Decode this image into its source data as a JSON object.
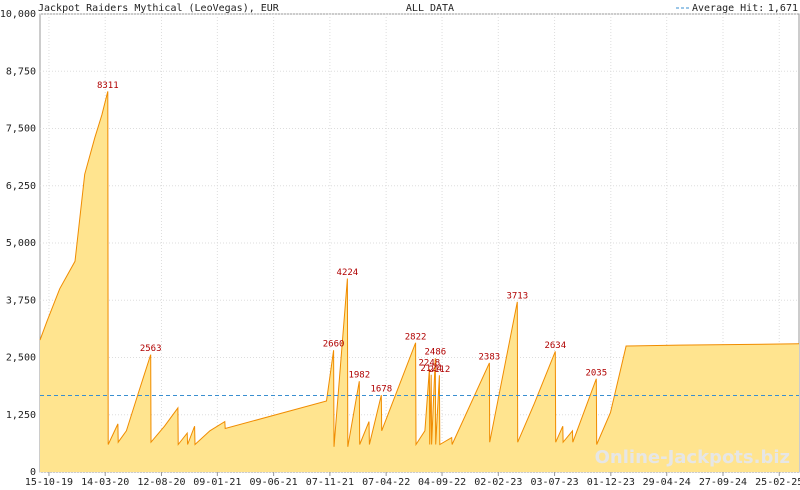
{
  "chart_data": {
    "type": "area",
    "title": "Jackpot Raiders Mythical (LeoVegas), EUR",
    "subtitle": "ALL DATA",
    "watermark": "Online-Jackpots.biz",
    "color": "#ffe48f",
    "line_color": "#f08c00",
    "xlim": [
      "2019-09-21",
      "2025-04-19"
    ],
    "ylim": [
      0,
      10000
    ],
    "xticks": [
      {
        "value": "2019-10-15",
        "label": "15-10-19"
      },
      {
        "value": "2020-03-14",
        "label": "14-03-20"
      },
      {
        "value": "2020-08-12",
        "label": "12-08-20"
      },
      {
        "value": "2021-01-09",
        "label": "09-01-21"
      },
      {
        "value": "2021-06-09",
        "label": "09-06-21"
      },
      {
        "value": "2021-11-07",
        "label": "07-11-21"
      },
      {
        "value": "2022-04-07",
        "label": "07-04-22"
      },
      {
        "value": "2022-09-04",
        "label": "04-09-22"
      },
      {
        "value": "2023-02-02",
        "label": "02-02-23"
      },
      {
        "value": "2023-07-03",
        "label": "03-07-23"
      },
      {
        "value": "2023-12-01",
        "label": "01-12-23"
      },
      {
        "value": "2024-04-29",
        "label": "29-04-24"
      },
      {
        "value": "2024-09-27",
        "label": "27-09-24"
      },
      {
        "value": "2025-02-25",
        "label": "25-02-25"
      }
    ],
    "yticks": [
      0,
      {
        "value": 1250,
        "label": "1,250"
      },
      {
        "value": 2500,
        "label": "2,500"
      },
      {
        "value": 3750,
        "label": "3,750"
      },
      {
        "value": 5000,
        "label": "5,000"
      },
      {
        "value": 6250,
        "label": "6,250"
      },
      {
        "value": 7500,
        "label": "7,500"
      },
      {
        "value": 8750,
        "label": "8,750"
      },
      {
        "value": 10000,
        "label": "10,000"
      }
    ],
    "grid": true,
    "x": [
      "2019-09-21",
      "2019-10-10",
      "2019-11-13",
      "2019-12-24",
      "2020-01-19",
      "2020-02-15",
      "2020-03-05",
      "2020-03-21",
      "2020-03-22",
      "2020-04-17",
      "2020-04-18",
      "2020-05-10",
      "2020-06-10",
      "2020-07-14",
      "2020-07-15",
      "2020-08-20",
      "2020-09-25",
      "2020-09-26",
      "2020-10-20",
      "2020-10-21",
      "2020-11-09",
      "2020-11-10",
      "2020-12-20",
      "2021-01-29",
      "2021-01-30",
      "2021-10-29",
      "2021-11-17",
      "2021-11-18",
      "2021-12-24",
      "2021-12-25",
      "2022-01-25",
      "2022-01-26",
      "2022-02-20",
      "2022-02-21",
      "2022-03-25",
      "2022-03-26",
      "2022-06-25",
      "2022-06-26",
      "2022-07-20",
      "2022-08-01",
      "2022-08-02",
      "2022-08-06",
      "2022-08-07",
      "2022-08-17",
      "2022-08-18",
      "2022-08-28",
      "2022-08-29",
      "2022-09-30",
      "2022-10-01",
      "2023-01-09",
      "2023-01-10",
      "2023-03-25",
      "2023-03-26",
      "2023-05-10",
      "2023-07-05",
      "2023-07-06",
      "2023-07-25",
      "2023-07-26",
      "2023-08-20",
      "2023-08-21",
      "2023-10-23",
      "2023-10-24",
      "2023-11-30",
      "2024-01-11",
      "2024-06-01",
      "2025-04-19"
    ],
    "values": [
      2880,
      3300,
      4000,
      4600,
      6500,
      7300,
      7800,
      8311,
      600,
      1050,
      650,
      900,
      1700,
      2563,
      650,
      1000,
      1400,
      600,
      850,
      600,
      1000,
      600,
      900,
      1100,
      950,
      1550,
      2660,
      550,
      4224,
      550,
      1982,
      600,
      1100,
      600,
      1678,
      900,
      2822,
      600,
      900,
      2248,
      600,
      2124,
      600,
      2486,
      600,
      2112,
      600,
      750,
      600,
      2383,
      650,
      3713,
      650,
      1500,
      2634,
      650,
      1000,
      650,
      900,
      650,
      2035,
      600,
      1300,
      2750,
      2770,
      2800
    ],
    "peaks": {
      "x": [
        "2020-03-21",
        "2020-07-14",
        "2021-11-17",
        "2021-12-24",
        "2022-01-25",
        "2022-03-25",
        "2022-06-25",
        "2022-08-01",
        "2022-08-06",
        "2022-08-17",
        "2022-08-28",
        "2023-01-09",
        "2023-03-25",
        "2023-07-05",
        "2023-10-23"
      ],
      "values": [
        8311,
        2563,
        2660,
        4224,
        1982,
        1678,
        2822,
        2248,
        2124,
        2486,
        2112,
        2383,
        3713,
        2634,
        2035
      ]
    },
    "average": {
      "name": "Average Hit:",
      "value": 1671,
      "value_label": "1,671",
      "color": "#3a8fd0"
    }
  }
}
